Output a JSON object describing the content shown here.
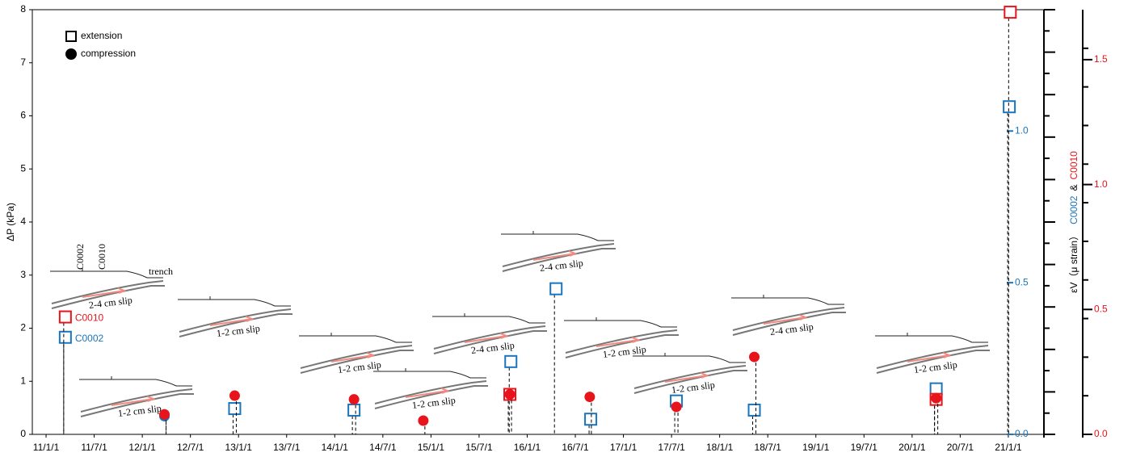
{
  "chart_data": {
    "type": "scatter",
    "ylabel": "ΔP (kPa)",
    "ylim": [
      0,
      8
    ],
    "yticks": [
      0,
      1,
      2,
      3,
      4,
      5,
      6,
      7,
      8
    ],
    "xlim": [
      2010.857,
      2021.37
    ],
    "xticks": [
      {
        "value": 2011,
        "label": "11/1/1"
      },
      {
        "value": 2011.5,
        "label": "11/7/1"
      },
      {
        "value": 2012,
        "label": "12/1/1"
      },
      {
        "value": 2012.5,
        "label": "12/7/1"
      },
      {
        "value": 2013,
        "label": "13/1/1"
      },
      {
        "value": 2013.5,
        "label": "13/7/1"
      },
      {
        "value": 2014,
        "label": "14/1/1"
      },
      {
        "value": 2014.5,
        "label": "14/7/1"
      },
      {
        "value": 2015,
        "label": "15/1/1"
      },
      {
        "value": 2015.5,
        "label": "15/7/1"
      },
      {
        "value": 2016,
        "label": "16/1/1"
      },
      {
        "value": 2016.5,
        "label": "16/7/1"
      },
      {
        "value": 2017,
        "label": "17/1/1"
      },
      {
        "value": 2017.5,
        "label": "17/7/1"
      },
      {
        "value": 2018,
        "label": "18/1/1"
      },
      {
        "value": 2018.5,
        "label": "18/7/1"
      },
      {
        "value": 2019,
        "label": "19/1/1"
      },
      {
        "value": 2019.5,
        "label": "19/7/1"
      },
      {
        "value": 2020,
        "label": "20/1/1"
      },
      {
        "value": 2020.5,
        "label": "20/7/1"
      },
      {
        "value": 2021,
        "label": "21/1/1"
      }
    ],
    "y2label": "εV（μ strain）",
    "y2label_joiner": "&",
    "y2lim": [
      0,
      1.4
    ],
    "y2ticks": [
      {
        "value": 0,
        "label": "0.0"
      },
      0.5,
      {
        "value": 1,
        "label": "1.0"
      }
    ],
    "y3lim": [
      0,
      1.7
    ],
    "y3ticks": [
      {
        "value": 0,
        "label": "0.0"
      },
      0.5,
      {
        "value": 1,
        "label": "1.0"
      },
      1.5
    ],
    "legend": [
      {
        "label": "extension",
        "marker": "square"
      },
      {
        "label": "compression",
        "marker": "circle"
      }
    ],
    "series": [
      {
        "name": "C0002",
        "color": "#1a75bc",
        "axis": "y2",
        "marker": "square",
        "x": [
          2011.2,
          2012.96,
          2014.2,
          2015.83,
          2016.3,
          2016.66,
          2017.55,
          2018.36,
          2020.25,
          2021.01
        ],
        "values": [
          0.32,
          0.085,
          0.08,
          0.24,
          0.48,
          0.05,
          0.11,
          0.08,
          0.15,
          1.08
        ]
      },
      {
        "name": "C0002",
        "color": "#1a75bc",
        "axis": "y2",
        "marker": "circle",
        "x": [
          2012.23
        ],
        "values": [
          0.06
        ]
      },
      {
        "name": "C0010",
        "color": "#e8141b",
        "axis": "y3",
        "marker": "square",
        "x": [
          2011.2,
          2015.82,
          2020.25,
          2021.02
        ],
        "values": [
          0.47,
          0.16,
          0.14,
          1.69
        ]
      },
      {
        "name": "C0010",
        "color": "#e8141b",
        "axis": "y3",
        "marker": "circle",
        "x": [
          2012.23,
          2012.96,
          2014.2,
          2014.92,
          2015.82,
          2016.65,
          2017.55,
          2018.36,
          2020.25
        ],
        "values": [
          0.08,
          0.155,
          0.14,
          0.055,
          0.16,
          0.15,
          0.11,
          0.31,
          0.145
        ]
      }
    ],
    "sketch_texts": [
      "C0002",
      "C0010",
      "trench"
    ],
    "slip_labels": [
      "2-4 cm slip",
      "1-2 cm slip",
      "1-2 cm slip",
      "1-2 cm slip",
      "1-2 cm slip",
      "2-4 cm slip",
      "2-4 cm slip",
      "1-2 cm slip",
      "1-2 cm slip",
      "2-4 cm slip",
      "1-2 cm slip"
    ]
  }
}
